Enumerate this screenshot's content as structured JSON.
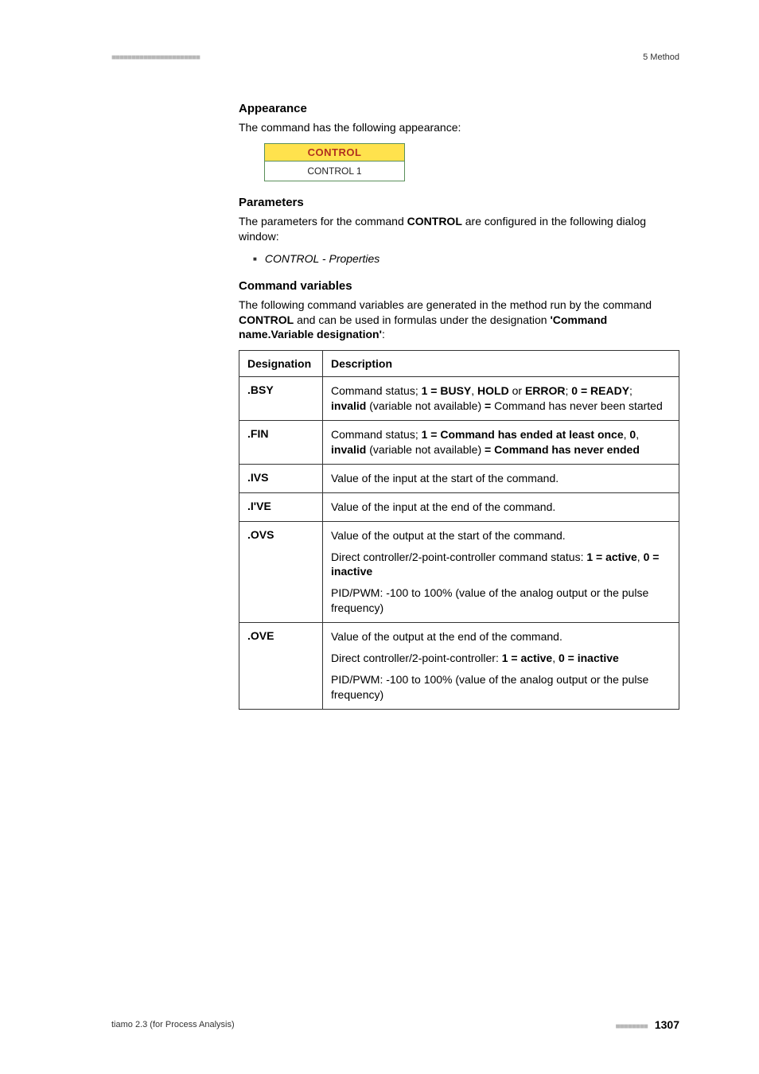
{
  "header": {
    "dashes": "■■■■■■■■■■■■■■■■■■■■■■",
    "section": "5 Method"
  },
  "appearance": {
    "heading": "Appearance",
    "intro": "The command has the following appearance:",
    "box_title": "CONTROL",
    "box_sub": "CONTROL 1"
  },
  "parameters": {
    "heading": "Parameters",
    "intro_pre": "The parameters for the command ",
    "intro_bold": "CONTROL",
    "intro_post": " are configured in the following dialog window:",
    "bullet": "CONTROL - Properties"
  },
  "cmdvars": {
    "heading": "Command variables",
    "intro_pre": "The following command variables are generated in the method run by the command ",
    "intro_bold": "CONTROL",
    "intro_mid": " and can be used in formulas under the designation ",
    "intro_bold2": "'Command name.Variable designation'",
    "intro_post": ":"
  },
  "table": {
    "col1": "Designation",
    "col2": "Description",
    "rows": {
      "bsy": {
        "desig": ".BSY",
        "t1": "Command status; ",
        "b1": "1 = BUSY",
        "t2": ", ",
        "b2": "HOLD",
        "t3": " or ",
        "b3": "ERROR",
        "t4": "; ",
        "b4": "0 = READY",
        "t5": "; ",
        "b5": "invalid",
        "t6": " (variable not available) ",
        "b6": "=",
        "t7": " Command has never been started"
      },
      "fin": {
        "desig": ".FIN",
        "t1": "Command status; ",
        "b1": "1 = Command has ended at least once",
        "t2": ", ",
        "b2": "0",
        "t3": ", ",
        "b3": "invalid",
        "t4": " (variable not available) ",
        "b4": "= Command has never ended"
      },
      "ivs": {
        "desig": ".IVS",
        "desc": "Value of the input at the start of the command."
      },
      "ive": {
        "desig": ".I'VE",
        "desc": "Value of the input at the end of the command."
      },
      "ovs": {
        "desig": ".OVS",
        "p1": "Value of the output at the start of the command.",
        "p2a": "Direct controller/2-point-controller command status: ",
        "p2b1": "1 = active",
        "p2m": ", ",
        "p2b2": "0 = inactive",
        "p3": "PID/PWM: -100 to 100% (value of the analog output or the pulse frequency)"
      },
      "ove": {
        "desig": ".OVE",
        "p1": "Value of the output at the end of the command.",
        "p2a": "Direct controller/2-point-controller: ",
        "p2b1": "1 = active",
        "p2m": ", ",
        "p2b2": "0 = inactive",
        "p3": "PID/PWM: -100 to 100% (value of the analog output or the pulse frequency)"
      }
    }
  },
  "footer": {
    "left": "tiamo 2.3 (for Process Analysis)",
    "dashes": "■■■■■■■■",
    "page": "1307"
  }
}
